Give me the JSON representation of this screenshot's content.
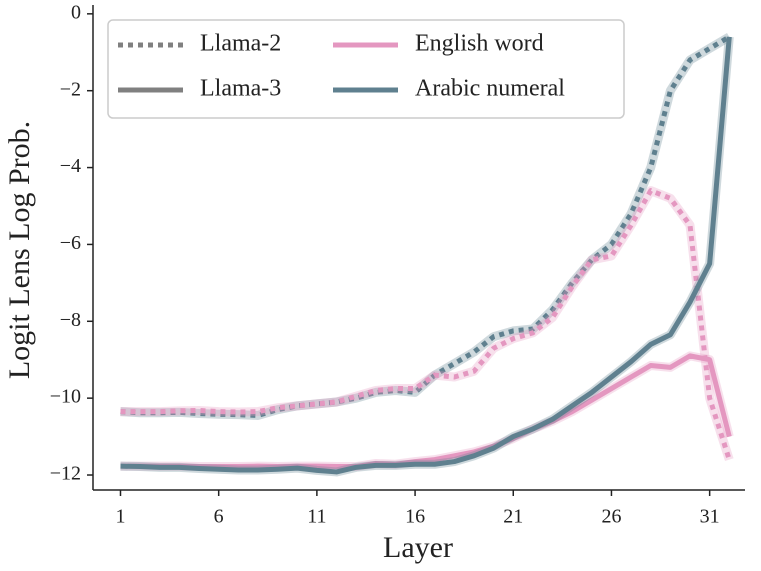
{
  "chart_data": {
    "type": "line",
    "x_label": "Layer",
    "y_label": "Logit Lens Log Prob.",
    "x": [
      1,
      2,
      3,
      4,
      5,
      6,
      7,
      8,
      9,
      10,
      11,
      12,
      13,
      14,
      15,
      16,
      17,
      18,
      19,
      20,
      21,
      22,
      23,
      24,
      25,
      26,
      27,
      28,
      29,
      30,
      31,
      32
    ],
    "xlim": [
      -0.4,
      32.8
    ],
    "ylim": [
      -12.39,
      0.23
    ],
    "xticks": [
      1,
      6,
      11,
      16,
      21,
      26,
      31
    ],
    "yticks": [
      0,
      {
        "value": -2,
        "label": "−2"
      },
      {
        "value": -4,
        "label": "−4"
      },
      {
        "value": -6,
        "label": "−6"
      },
      {
        "value": -8,
        "label": "−8"
      },
      {
        "value": -10,
        "label": "−10"
      },
      {
        "value": -12,
        "label": "−12"
      }
    ],
    "style_legend": [
      {
        "label": "Llama-2",
        "dash": "dotted"
      },
      {
        "label": "Llama-3",
        "dash": "solid"
      }
    ],
    "color_legend": [
      {
        "label": "English word",
        "color": "#e497c0"
      },
      {
        "label": "Arabic numeral",
        "color": "#5f808f"
      }
    ],
    "legend_color": "#808080",
    "series": [
      {
        "color": "#5f808f",
        "dash": "dotted",
        "values": [
          -10.35,
          -10.38,
          -10.38,
          -10.37,
          -10.4,
          -10.42,
          -10.43,
          -10.45,
          -10.3,
          -10.2,
          -10.15,
          -10.1,
          -10.0,
          -9.85,
          -9.8,
          -9.85,
          -9.4,
          -9.1,
          -8.8,
          -8.4,
          -8.25,
          -8.2,
          -7.7,
          -7.0,
          -6.4,
          -6.0,
          -5.2,
          -4.0,
          -2.0,
          -1.2,
          -0.9,
          -0.6
        ]
      },
      {
        "color": "#e497c0",
        "dash": "dotted",
        "values": [
          -10.35,
          -10.35,
          -10.35,
          -10.33,
          -10.32,
          -10.35,
          -10.36,
          -10.35,
          -10.25,
          -10.2,
          -10.15,
          -10.1,
          -9.95,
          -9.8,
          -9.75,
          -9.75,
          -9.4,
          -9.45,
          -9.3,
          -8.7,
          -8.45,
          -8.3,
          -7.9,
          -7.1,
          -6.4,
          -6.3,
          -5.5,
          -4.6,
          -4.8,
          -5.5,
          -10.0,
          -11.6
        ]
      },
      {
        "color": "#e497c0",
        "dash": "solid",
        "values": [
          -11.77,
          -11.77,
          -11.77,
          -11.77,
          -11.78,
          -11.78,
          -11.78,
          -11.77,
          -11.78,
          -11.77,
          -11.77,
          -11.78,
          -11.78,
          -11.7,
          -11.72,
          -11.65,
          -11.6,
          -11.5,
          -11.4,
          -11.25,
          -11.05,
          -10.8,
          -10.6,
          -10.35,
          -10.05,
          -9.75,
          -9.45,
          -9.15,
          -9.2,
          -8.9,
          -9.0,
          -11.0
        ]
      },
      {
        "color": "#5f808f",
        "dash": "solid",
        "values": [
          -11.77,
          -11.78,
          -11.8,
          -11.8,
          -11.83,
          -11.85,
          -11.87,
          -11.87,
          -11.85,
          -11.82,
          -11.88,
          -11.92,
          -11.8,
          -11.75,
          -11.75,
          -11.72,
          -11.72,
          -11.65,
          -11.5,
          -11.3,
          -11.0,
          -10.8,
          -10.55,
          -10.2,
          -9.85,
          -9.45,
          -9.05,
          -8.6,
          -8.35,
          -7.5,
          -6.5,
          -0.6
        ]
      }
    ]
  }
}
